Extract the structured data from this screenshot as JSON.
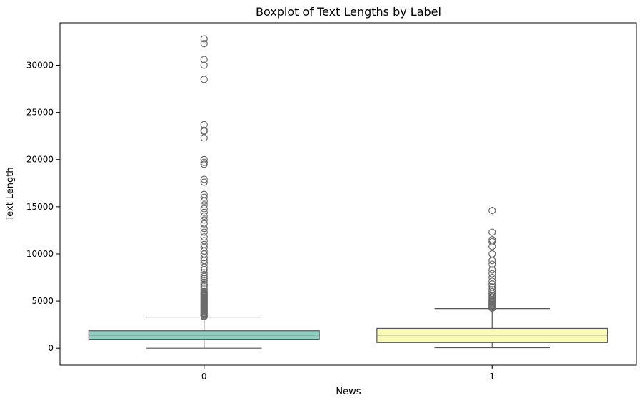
{
  "chart_data": {
    "type": "boxplot",
    "title": "Boxplot of Text Lengths by Label",
    "xlabel": "News",
    "ylabel": "Text Length",
    "categories": [
      "0",
      "1"
    ],
    "ylim": [
      -1800,
      34500
    ],
    "yticks": [
      0,
      5000,
      10000,
      15000,
      20000,
      25000,
      30000
    ],
    "ytick_labels": [
      "0",
      "5000",
      "10000",
      "15000",
      "20000",
      "25000",
      "30000"
    ],
    "grid": false,
    "colors": {
      "box_0": "#8fcfc1",
      "box_1": "#fbfbb8",
      "lines": "#555555",
      "outlier_edge": "#6b6b6b"
    },
    "boxes": [
      {
        "category": "0",
        "whisker_low": 0,
        "q1": 950,
        "median": 1400,
        "q3": 1850,
        "whisker_high": 3300,
        "outliers": [
          3350,
          3420,
          3500,
          3600,
          3700,
          3800,
          3900,
          4000,
          4100,
          4200,
          4300,
          4400,
          4500,
          4600,
          4700,
          4800,
          4900,
          5000,
          5100,
          5200,
          5300,
          5400,
          5500,
          5600,
          5700,
          5800,
          5900,
          6000,
          6200,
          6400,
          6600,
          6800,
          7000,
          7200,
          7400,
          7600,
          7800,
          8000,
          8300,
          8600,
          9000,
          9300,
          9600,
          10000,
          10300,
          10700,
          11000,
          11400,
          11800,
          12300,
          12700,
          13200,
          13600,
          14000,
          14400,
          14800,
          15200,
          15600,
          16000,
          16300,
          17600,
          17900,
          19500,
          19700,
          20000,
          22300,
          23000,
          23100,
          23700,
          28500,
          30000,
          30600,
          32300,
          32800
        ]
      },
      {
        "category": "1",
        "whisker_low": 50,
        "q1": 600,
        "median": 1400,
        "q3": 2100,
        "whisker_high": 4200,
        "outliers": [
          4250,
          4350,
          4450,
          4550,
          4650,
          4750,
          4850,
          4950,
          5050,
          5150,
          5300,
          5450,
          5600,
          5800,
          6000,
          6200,
          6500,
          6800,
          7100,
          7500,
          7900,
          8300,
          8900,
          9300,
          10000,
          10800,
          11300,
          11500,
          12300,
          14600
        ]
      }
    ]
  }
}
